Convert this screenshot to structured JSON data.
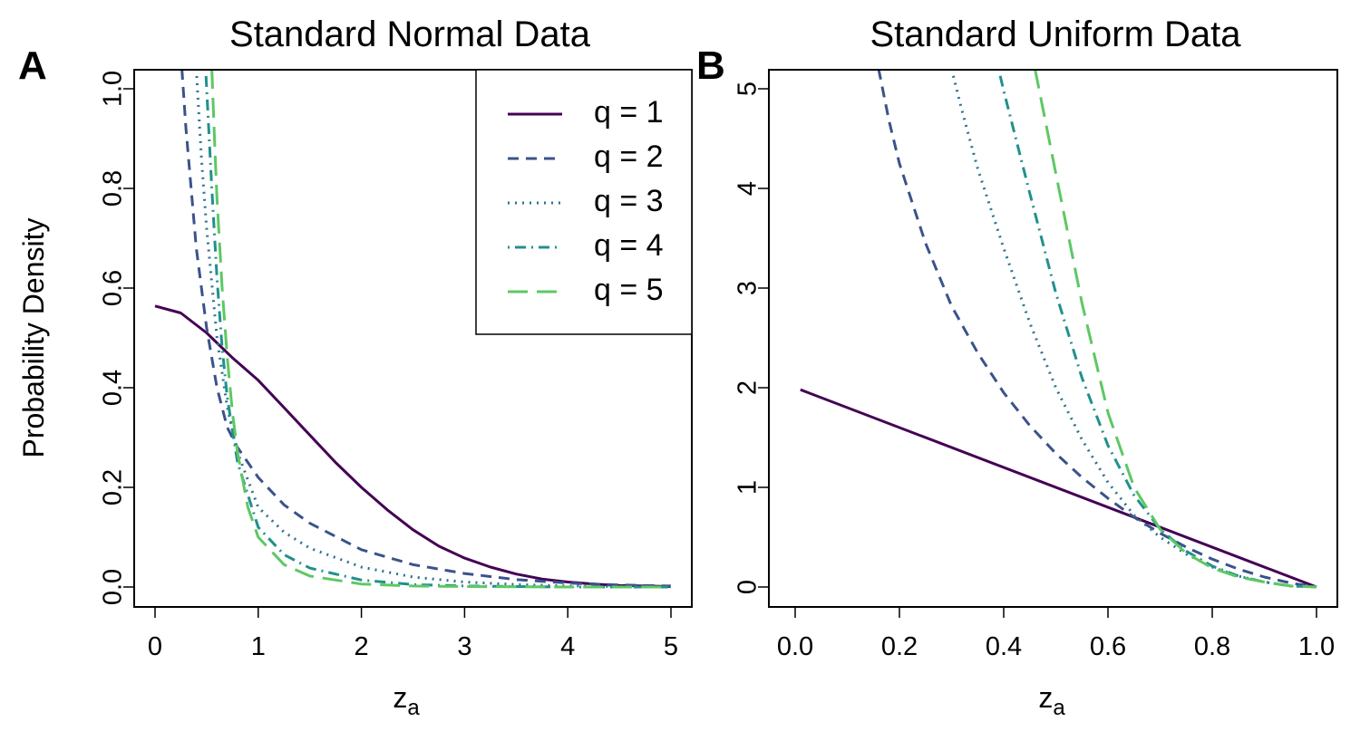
{
  "figure": {
    "ylabel": "Probability Density"
  },
  "panels": [
    {
      "letter": "A",
      "title": "Standard Normal Data",
      "xlabel_main": "z",
      "xlabel_sub": "a"
    },
    {
      "letter": "B",
      "title": "Standard Uniform Data",
      "xlabel_main": "z",
      "xlabel_sub": "a"
    }
  ],
  "legend": {
    "position": "top-right of panel A",
    "entries": [
      {
        "label": "q = 1",
        "color": "#440154",
        "dash": "solid"
      },
      {
        "label": "q = 2",
        "color": "#3B528B",
        "dash": "dashed"
      },
      {
        "label": "q = 3",
        "color": "#2C728E",
        "dash": "dotted"
      },
      {
        "label": "q = 4",
        "color": "#21908C",
        "dash": "dotdash"
      },
      {
        "label": "q = 5",
        "color": "#5DC863",
        "dash": "longdash"
      }
    ]
  },
  "chart_data": [
    {
      "type": "line",
      "title": "Standard Normal Data",
      "xlabel": "z_a",
      "ylabel": "Probability Density",
      "xlim": [
        0,
        5
      ],
      "ylim": [
        0,
        1.0
      ],
      "xticks": [
        "0",
        "1",
        "2",
        "3",
        "4",
        "5"
      ],
      "yticks": [
        "0.0",
        "0.2",
        "0.4",
        "0.6",
        "0.8",
        "1.0"
      ],
      "grid": false,
      "series": [
        {
          "name": "q = 1",
          "x": [
            0,
            0.25,
            0.5,
            0.75,
            1.0,
            1.25,
            1.5,
            1.75,
            2.0,
            2.25,
            2.5,
            2.75,
            3.0,
            3.25,
            3.5,
            3.75,
            4.0,
            4.25,
            4.5,
            4.75,
            5.0
          ],
          "y": [
            0.564,
            0.55,
            0.51,
            0.46,
            0.415,
            0.36,
            0.305,
            0.25,
            0.2,
            0.155,
            0.115,
            0.082,
            0.058,
            0.04,
            0.026,
            0.016,
            0.01,
            0.006,
            0.003,
            0.002,
            0.001
          ]
        },
        {
          "name": "q = 2",
          "x": [
            0.26,
            0.3,
            0.4,
            0.5,
            0.6,
            0.7,
            0.8,
            1.0,
            1.25,
            1.5,
            2.0,
            2.5,
            3.0,
            3.5,
            4.0,
            4.5,
            5.0
          ],
          "y": [
            1.04,
            0.92,
            0.68,
            0.52,
            0.4,
            0.32,
            0.28,
            0.22,
            0.165,
            0.128,
            0.075,
            0.045,
            0.027,
            0.015,
            0.008,
            0.004,
            0.002
          ]
        },
        {
          "name": "q = 3",
          "x": [
            0.4,
            0.45,
            0.5,
            0.6,
            0.7,
            0.8,
            1.0,
            1.25,
            1.5,
            2.0,
            2.5,
            3.0,
            3.5,
            4.0,
            4.5,
            5.0
          ],
          "y": [
            1.04,
            0.86,
            0.72,
            0.5,
            0.36,
            0.27,
            0.16,
            0.11,
            0.078,
            0.04,
            0.02,
            0.01,
            0.005,
            0.002,
            0.001,
            0.0
          ]
        },
        {
          "name": "q = 4",
          "x": [
            0.49,
            0.52,
            0.55,
            0.6,
            0.65,
            0.7,
            0.8,
            1.0,
            1.25,
            1.5,
            2.0,
            2.5,
            3.0,
            4.0,
            5.0
          ],
          "y": [
            1.04,
            0.92,
            0.8,
            0.62,
            0.48,
            0.38,
            0.25,
            0.12,
            0.065,
            0.038,
            0.014,
            0.005,
            0.002,
            0.0,
            0.0
          ]
        },
        {
          "name": "q = 5",
          "x": [
            0.55,
            0.58,
            0.6,
            0.65,
            0.7,
            0.75,
            0.8,
            0.9,
            1.0,
            1.25,
            1.5,
            2.0,
            2.5,
            3.0,
            4.0,
            5.0
          ],
          "y": [
            1.04,
            0.88,
            0.78,
            0.6,
            0.46,
            0.35,
            0.27,
            0.16,
            0.1,
            0.045,
            0.022,
            0.006,
            0.002,
            0.001,
            0.0,
            0.0
          ]
        }
      ]
    },
    {
      "type": "line",
      "title": "Standard Uniform Data",
      "xlabel": "z_a",
      "ylabel": "",
      "xlim": [
        0.0,
        1.0
      ],
      "ylim": [
        0,
        5
      ],
      "xticks": [
        "0.0",
        "0.2",
        "0.4",
        "0.6",
        "0.8",
        "1.0"
      ],
      "yticks": [
        "0",
        "1",
        "2",
        "3",
        "4",
        "5"
      ],
      "grid": false,
      "series": [
        {
          "name": "q = 1",
          "x": [
            0.01,
            1.0
          ],
          "y": [
            1.98,
            0.0
          ]
        },
        {
          "name": "q = 2",
          "x": [
            0.16,
            0.18,
            0.2,
            0.25,
            0.3,
            0.35,
            0.4,
            0.45,
            0.5,
            0.55,
            0.6,
            0.65,
            0.7,
            0.75,
            0.8,
            0.85,
            0.9,
            0.95,
            1.0
          ],
          "y": [
            5.2,
            4.68,
            4.25,
            3.45,
            2.82,
            2.35,
            1.95,
            1.62,
            1.34,
            1.1,
            0.89,
            0.7,
            0.54,
            0.4,
            0.28,
            0.18,
            0.1,
            0.04,
            0.0
          ]
        },
        {
          "name": "q = 3",
          "x": [
            0.3,
            0.32,
            0.35,
            0.4,
            0.45,
            0.5,
            0.55,
            0.6,
            0.65,
            0.7,
            0.75,
            0.8,
            0.85,
            0.9,
            0.95,
            1.0
          ],
          "y": [
            5.2,
            4.78,
            4.2,
            3.4,
            2.65,
            2.0,
            1.48,
            1.05,
            0.72,
            0.5,
            0.33,
            0.2,
            0.11,
            0.05,
            0.01,
            0.0
          ]
        },
        {
          "name": "q = 4",
          "x": [
            0.39,
            0.4,
            0.45,
            0.5,
            0.55,
            0.6,
            0.65,
            0.7,
            0.75,
            0.8,
            0.85,
            0.9,
            0.95,
            1.0
          ],
          "y": [
            5.2,
            4.98,
            3.95,
            2.95,
            2.1,
            1.42,
            0.92,
            0.58,
            0.36,
            0.21,
            0.11,
            0.05,
            0.01,
            0.0
          ]
        },
        {
          "name": "q = 5",
          "x": [
            0.46,
            0.5,
            0.55,
            0.6,
            0.65,
            0.7,
            0.75,
            0.8,
            0.85,
            0.9,
            0.95,
            1.0
          ],
          "y": [
            5.2,
            4.15,
            2.85,
            1.75,
            1.0,
            0.58,
            0.34,
            0.19,
            0.1,
            0.05,
            0.01,
            0.0
          ]
        }
      ]
    }
  ]
}
